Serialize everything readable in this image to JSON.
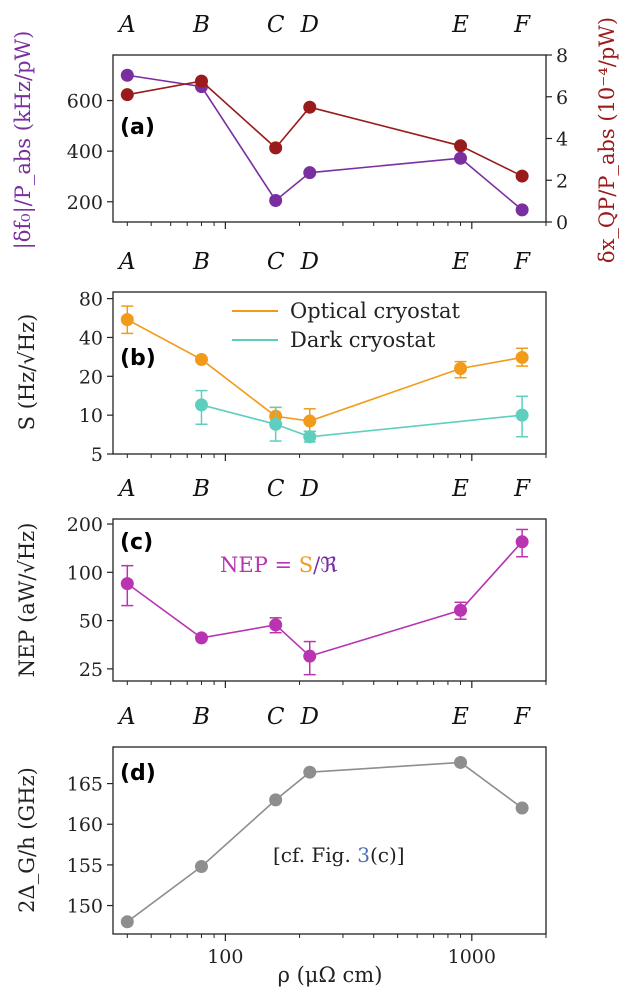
{
  "chart_data": [
    {
      "panel": "(a)",
      "type": "line",
      "top_labels": [
        "A",
        "B",
        "C",
        "D",
        "E",
        "F"
      ],
      "x": [
        40,
        80,
        160,
        220,
        900,
        1600
      ],
      "ylabel_left": "|δf₀|/P_abs (kHz/pW)",
      "ylabel_right": "δx_QP/P_abs (10⁻⁴/pW)",
      "ylim_left": [
        120,
        780
      ],
      "yticks_left": [
        200,
        400,
        600
      ],
      "ylim_right": [
        0,
        8
      ],
      "yticks_right": [
        0,
        2,
        4,
        6,
        8
      ],
      "series": [
        {
          "axis": "left",
          "color": "#7a2fa0",
          "values": [
            700,
            655,
            205,
            315,
            372,
            168
          ]
        },
        {
          "axis": "right",
          "color": "#9a1b1b",
          "values": [
            6.1,
            6.75,
            3.55,
            5.5,
            3.65,
            2.2
          ]
        }
      ]
    },
    {
      "panel": "(b)",
      "type": "line",
      "log_y": true,
      "top_labels": [
        "A",
        "B",
        "C",
        "D",
        "E",
        "F"
      ],
      "ylabel": "S (Hz/√Hz)",
      "ylim": [
        5,
        90
      ],
      "yticks": [
        5,
        10,
        20,
        40,
        80
      ],
      "legend": [
        "Optical cryostat",
        "Dark cryostat"
      ],
      "legend_position": "top-center",
      "series": [
        {
          "name": "Optical cryostat",
          "color": "#f29a1a",
          "x": [
            40,
            80,
            160,
            220,
            900,
            1600
          ],
          "values": [
            55,
            27,
            9.8,
            9.0,
            23,
            28
          ],
          "err_low": [
            43,
            26.5,
            8.5,
            7.5,
            19.5,
            24
          ],
          "err_high": [
            70,
            27.5,
            11.5,
            11.2,
            26,
            33
          ]
        },
        {
          "name": "Dark cryostat",
          "color": "#5ecfbf",
          "x": [
            80,
            160,
            220,
            1600
          ],
          "values": [
            12,
            8.5,
            6.8,
            10
          ],
          "err_low": [
            8.5,
            6.3,
            6.2,
            6.8
          ],
          "err_high": [
            15.5,
            11.5,
            7.5,
            14
          ]
        }
      ]
    },
    {
      "panel": "(c)",
      "type": "line",
      "log_y": true,
      "top_labels": [
        "A",
        "B",
        "C",
        "D",
        "E",
        "F"
      ],
      "ylabel": "NEP (aW/√Hz)",
      "ylim": [
        21,
        215
      ],
      "yticks": [
        25,
        50,
        100,
        200
      ],
      "annotation": {
        "prefix": "NEP = ",
        "part1": "S",
        "slash": "/",
        "part2": "ℜ"
      },
      "series": [
        {
          "color": "#b834b0",
          "x": [
            40,
            80,
            160,
            220,
            900,
            1600
          ],
          "values": [
            85,
            39,
            47,
            30,
            58,
            155
          ],
          "err_low": [
            62,
            38.5,
            42,
            23,
            51,
            125
          ],
          "err_high": [
            110,
            39.5,
            52,
            37,
            65,
            185
          ]
        }
      ]
    },
    {
      "panel": "(d)",
      "type": "line",
      "top_labels": [
        "A",
        "B",
        "C",
        "D",
        "E",
        "F"
      ],
      "ylabel": "2Δ_G/h (GHz)",
      "xlabel": "ρ (μΩ cm)",
      "ylim": [
        146.5,
        169.5
      ],
      "yticks": [
        150,
        155,
        160,
        165
      ],
      "xticks": [
        100,
        1000
      ],
      "xlim": [
        35,
        2000
      ],
      "annotation": {
        "text": "[cf. Fig. ",
        "ref": "3",
        "tail": "(c)]"
      },
      "series": [
        {
          "color": "#8e8e8e",
          "x": [
            40,
            80,
            160,
            220,
            900,
            1600
          ],
          "values": [
            148,
            154.8,
            163,
            166.4,
            167.6,
            162
          ]
        }
      ]
    }
  ]
}
